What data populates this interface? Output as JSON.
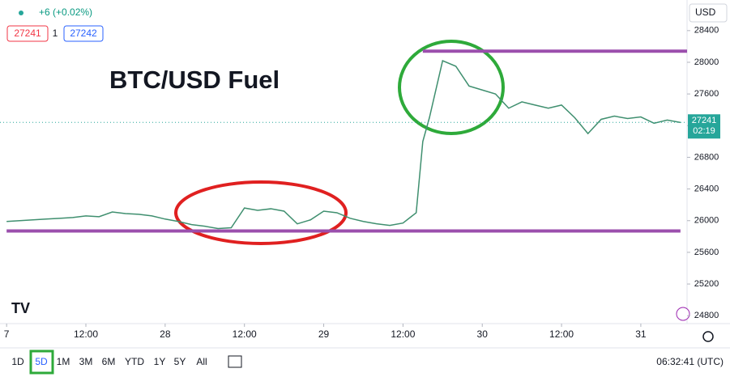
{
  "header": {
    "change": "+6 (+0.02%)",
    "bid": "27241",
    "spread": "1",
    "ask": "27242",
    "currency": "USD"
  },
  "chart_data": {
    "type": "line",
    "title": "BTC/USD Fuel",
    "x": [
      0,
      2,
      4,
      6,
      8,
      10,
      12,
      14,
      16,
      18,
      20,
      22,
      24,
      26,
      28,
      30,
      32,
      34,
      36,
      38,
      40,
      42,
      44,
      46,
      48,
      50,
      52,
      54,
      56,
      58,
      60,
      62,
      63,
      64,
      66,
      68,
      70,
      72,
      74,
      76,
      78,
      80,
      82,
      84,
      86,
      88,
      90,
      92,
      94,
      96,
      98,
      100,
      102
    ],
    "series": [
      {
        "color": "#3f8f6f",
        "values": [
          25990,
          26000,
          26010,
          26020,
          26030,
          26040,
          26060,
          26050,
          26110,
          26090,
          26080,
          26060,
          26020,
          25990,
          25950,
          25930,
          25900,
          25910,
          26160,
          26130,
          26150,
          26120,
          25960,
          26010,
          26120,
          26100,
          26030,
          25990,
          25960,
          25940,
          25970,
          26100,
          27000,
          27300,
          28020,
          27950,
          27700,
          27650,
          27600,
          27420,
          27500,
          27460,
          27420,
          27460,
          27300,
          27100,
          27280,
          27320,
          27290,
          27310,
          27230,
          27270,
          27240
        ]
      }
    ],
    "xlim": [
      -1,
      103
    ],
    "ylim": [
      24700,
      28480
    ],
    "xticks": [
      {
        "value": 0,
        "label": "7"
      },
      {
        "value": 12,
        "label": "12:00"
      },
      {
        "value": 24,
        "label": "28"
      },
      {
        "value": 36,
        "label": "12:00"
      },
      {
        "value": 48,
        "label": "29"
      },
      {
        "value": 60,
        "label": "12:00"
      },
      {
        "value": 72,
        "label": "30"
      },
      {
        "value": 84,
        "label": "12:00"
      },
      {
        "value": 96,
        "label": "31"
      }
    ],
    "yticks": [
      24800,
      25200,
      25600,
      26000,
      26400,
      26800,
      27200,
      27600,
      28000,
      28400
    ],
    "grid": false,
    "hlines": [
      {
        "y": 28140,
        "x": [
          63,
          103
        ],
        "color": "#9b4fad"
      },
      {
        "y": 25870,
        "x": [
          0,
          102
        ],
        "color": "#9b4fad"
      }
    ],
    "last_price": {
      "value": 27241,
      "countdown": "02:19"
    }
  },
  "toolbar": {
    "ranges": [
      "1D",
      "5D",
      "1M",
      "3M",
      "6M",
      "YTD",
      "1Y",
      "5Y",
      "All"
    ],
    "active_index": 1,
    "clock": "06:32:41 (UTC)"
  }
}
